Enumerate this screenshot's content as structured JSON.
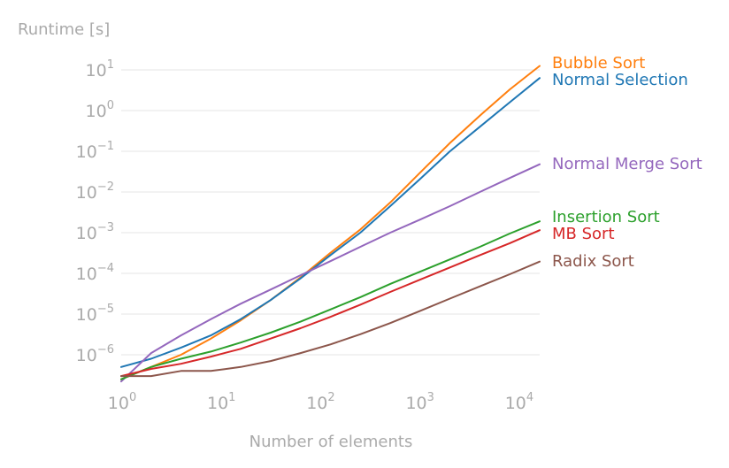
{
  "chart_data": {
    "type": "line",
    "title": "",
    "ylabel": "Runtime [s]",
    "xlabel": "Number of elements",
    "x_scale": "log",
    "y_scale": "log",
    "xlim": [
      0.84,
      16384
    ],
    "ylim": [
      1.6e-07,
      40
    ],
    "grid": "horizontal",
    "legend": "right-end-labels",
    "x_ticks": [
      {
        "value": 1,
        "base": "10",
        "exp": "0"
      },
      {
        "value": 10,
        "base": "10",
        "exp": "1"
      },
      {
        "value": 100,
        "base": "10",
        "exp": "2"
      },
      {
        "value": 1000,
        "base": "10",
        "exp": "3"
      },
      {
        "value": 10000,
        "base": "10",
        "exp": "4"
      }
    ],
    "y_ticks": [
      {
        "value": 10,
        "base": "10",
        "exp": "1"
      },
      {
        "value": 1,
        "base": "10",
        "exp": "0"
      },
      {
        "value": 0.1,
        "base": "10",
        "exp": "−1"
      },
      {
        "value": 0.01,
        "base": "10",
        "exp": "−2"
      },
      {
        "value": 0.001,
        "base": "10",
        "exp": "−3"
      },
      {
        "value": 0.0001,
        "base": "10",
        "exp": "−4"
      },
      {
        "value": 1e-05,
        "base": "10",
        "exp": "−5"
      },
      {
        "value": 1e-06,
        "base": "10",
        "exp": "−6"
      }
    ],
    "x": [
      1,
      2,
      4,
      8,
      16,
      32,
      64,
      128,
      256,
      512,
      1024,
      2048,
      4096,
      8192,
      16384
    ],
    "series": [
      {
        "name": "Bubble Sort",
        "color": "#ff7f0e",
        "values": [
          2.5e-07,
          5e-07,
          1e-06,
          2.5e-06,
          7e-06,
          2.2e-05,
          8e-05,
          0.00032,
          0.0012,
          0.0055,
          0.03,
          0.16,
          0.75,
          3.3,
          12.5
        ]
      },
      {
        "name": "Normal Selection",
        "color": "#1f77b4",
        "values": [
          5e-07,
          8e-07,
          1.5e-06,
          3e-06,
          7.5e-06,
          2.2e-05,
          7.5e-05,
          0.00028,
          0.001,
          0.0045,
          0.021,
          0.1,
          0.4,
          1.6,
          6.3
        ]
      },
      {
        "name": "Normal Merge Sort",
        "color": "#9467bd",
        "values": [
          2.2e-07,
          1.1e-06,
          3e-06,
          7.5e-06,
          1.8e-05,
          4e-05,
          9e-05,
          0.0002,
          0.00045,
          0.001,
          0.0021,
          0.0045,
          0.01,
          0.022,
          0.048
        ]
      },
      {
        "name": "Insertion Sort",
        "color": "#2ca02c",
        "values": [
          2.5e-07,
          5e-07,
          8e-07,
          1.2e-06,
          2e-06,
          3.5e-06,
          6.5e-06,
          1.3e-05,
          2.6e-05,
          5.5e-05,
          0.00011,
          0.00022,
          0.00045,
          0.00095,
          0.0019
        ]
      },
      {
        "name": "MB Sort",
        "color": "#d62728",
        "values": [
          3e-07,
          4.5e-07,
          6e-07,
          9e-07,
          1.4e-06,
          2.5e-06,
          4.5e-06,
          8.5e-06,
          1.7e-05,
          3.5e-05,
          7e-05,
          0.00014,
          0.00028,
          0.00055,
          0.00115
        ]
      },
      {
        "name": "Radix Sort",
        "color": "#8c564b",
        "values": [
          3e-07,
          3e-07,
          4e-07,
          4e-07,
          5e-07,
          7e-07,
          1.1e-06,
          1.8e-06,
          3.2e-06,
          6e-06,
          1.2e-05,
          2.4e-05,
          4.8e-05,
          9.5e-05,
          0.000195
        ]
      }
    ]
  }
}
